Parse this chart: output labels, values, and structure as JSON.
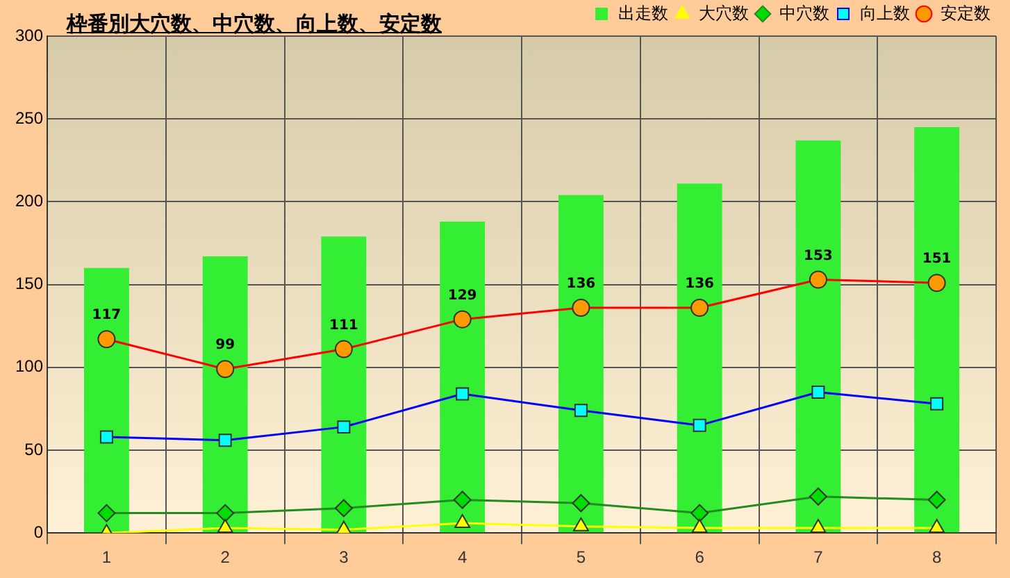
{
  "chart_data": {
    "type": "bar",
    "title": "枠番別大穴数、中穴数、向上数、安定数",
    "categories": [
      "1",
      "2",
      "3",
      "4",
      "5",
      "6",
      "7",
      "8"
    ],
    "series": [
      {
        "name": "出走数",
        "color": "#33ee33",
        "values": [
          160,
          167,
          179,
          188,
          204,
          211,
          237,
          245
        ]
      },
      {
        "name": "大穴数",
        "type": "line",
        "marker": "triangle",
        "color": "#ffff00",
        "values": [
          0,
          3,
          2,
          6,
          4,
          3,
          3,
          3
        ]
      },
      {
        "name": "中穴数",
        "type": "line",
        "marker": "diamond",
        "color": "#228b22",
        "values": [
          12,
          12,
          15,
          20,
          18,
          12,
          22,
          20
        ]
      },
      {
        "name": "向上数",
        "type": "line",
        "marker": "square",
        "color": "#0000ff",
        "values": [
          58,
          56,
          64,
          84,
          74,
          65,
          85,
          78
        ]
      },
      {
        "name": "安定数",
        "type": "line",
        "marker": "circle",
        "color": "#ff0000",
        "values": [
          117,
          99,
          111,
          129,
          136,
          136,
          153,
          151
        ],
        "value_labels": [
          "117",
          "99",
          "111",
          "129",
          "136",
          "136",
          "153",
          "151"
        ]
      }
    ],
    "ylim": [
      0,
      300
    ],
    "yticks": [
      0,
      50,
      100,
      150,
      200,
      250,
      300
    ],
    "grid": true,
    "legend": "top right"
  }
}
